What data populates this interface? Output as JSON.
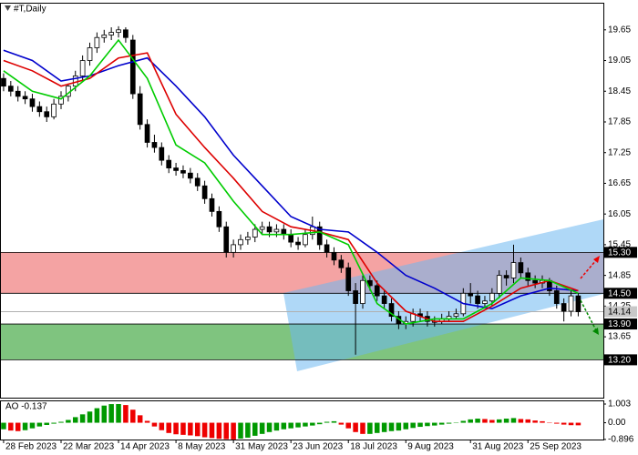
{
  "chart_data": [
    {
      "type": "candlestick",
      "title": "#T,Daily",
      "xlim": [
        -0.5,
        83.5
      ],
      "ylim": [
        12.46,
        20.18
      ],
      "xticks": [
        {
          "value": 0,
          "label": "28 Feb 2023"
        },
        {
          "value": 8,
          "label": "22 Mar 2023"
        },
        {
          "value": 16,
          "label": "14 Apr 2023"
        },
        {
          "value": 24,
          "label": "8 May 2023"
        },
        {
          "value": 32,
          "label": "31 May 2023"
        },
        {
          "value": 40,
          "label": "23 Jun 2023"
        },
        {
          "value": 48,
          "label": "18 Jul 2023"
        },
        {
          "value": 56,
          "label": "9 Aug 2023"
        },
        {
          "value": 65,
          "label": "31 Aug 2023"
        },
        {
          "value": 73,
          "label": "25 Sep 2023"
        }
      ],
      "yticks": [
        19.65,
        19.05,
        18.45,
        17.85,
        17.25,
        16.65,
        16.05,
        15.45,
        14.85,
        14.25,
        13.65
      ],
      "up_color": "#ffffff",
      "down_color": "#000000",
      "edge_color": "#000000",
      "open": [
        18.7,
        18.55,
        18.45,
        18.35,
        18.3,
        18.15,
        18.05,
        17.95,
        18.2,
        18.35,
        18.55,
        18.75,
        19.05,
        19.3,
        19.5,
        19.55,
        19.6,
        19.65,
        19.45,
        18.4,
        17.8,
        17.45,
        17.35,
        17.1,
        16.95,
        16.9,
        16.85,
        16.75,
        16.6,
        16.35,
        16.1,
        15.8,
        15.3,
        15.45,
        15.55,
        15.6,
        15.75,
        15.8,
        15.7,
        15.75,
        15.65,
        15.5,
        15.45,
        15.65,
        15.8,
        15.45,
        15.3,
        15.15,
        15.0,
        14.55,
        14.3,
        14.75,
        14.65,
        14.45,
        14.3,
        14.05,
        13.9,
        13.95,
        14.1,
        14.05,
        13.95,
        13.95,
        14.0,
        14.05,
        14.1,
        14.5,
        14.45,
        14.3,
        14.35,
        14.5,
        14.85,
        14.8,
        15.1,
        14.9,
        14.75,
        14.7,
        14.75,
        14.55,
        14.3,
        14.15,
        14.45
      ],
      "high": [
        18.8,
        18.65,
        18.55,
        18.45,
        18.4,
        18.25,
        18.15,
        18.3,
        18.45,
        18.6,
        18.85,
        19.15,
        19.4,
        19.6,
        19.65,
        19.7,
        19.72,
        19.7,
        19.55,
        18.55,
        17.9,
        17.6,
        17.45,
        17.2,
        17.05,
        17.0,
        16.95,
        16.85,
        16.7,
        16.45,
        16.2,
        15.9,
        15.55,
        15.65,
        15.7,
        15.85,
        15.9,
        15.9,
        15.85,
        15.85,
        15.75,
        15.6,
        15.75,
        16.0,
        15.9,
        15.55,
        15.4,
        15.25,
        15.1,
        14.7,
        14.85,
        14.85,
        14.75,
        14.55,
        14.4,
        14.15,
        14.05,
        14.2,
        14.2,
        14.15,
        14.05,
        14.1,
        14.15,
        14.2,
        14.6,
        14.7,
        14.55,
        14.45,
        14.6,
        14.95,
        14.95,
        15.45,
        15.2,
        15.0,
        14.85,
        14.85,
        14.8,
        14.65,
        14.4,
        14.55,
        14.5
      ],
      "low": [
        18.45,
        18.35,
        18.25,
        18.2,
        18.05,
        17.95,
        17.85,
        17.9,
        18.1,
        18.25,
        18.45,
        18.65,
        18.95,
        19.2,
        19.4,
        19.45,
        19.5,
        19.4,
        18.3,
        17.7,
        17.35,
        17.25,
        17.0,
        16.85,
        16.8,
        16.75,
        16.65,
        16.5,
        16.25,
        16.0,
        15.7,
        15.2,
        15.2,
        15.35,
        15.45,
        15.5,
        15.65,
        15.6,
        15.6,
        15.55,
        15.4,
        15.35,
        15.4,
        15.55,
        15.35,
        15.2,
        15.05,
        14.9,
        14.45,
        13.3,
        14.2,
        14.55,
        14.35,
        14.2,
        13.95,
        13.8,
        13.8,
        13.85,
        13.95,
        13.85,
        13.85,
        13.9,
        13.95,
        14.0,
        14.05,
        14.3,
        14.2,
        14.2,
        14.25,
        14.4,
        14.65,
        14.7,
        14.8,
        14.65,
        14.6,
        14.6,
        14.45,
        14.2,
        13.95,
        14.05,
        14.05
      ],
      "close": [
        18.55,
        18.45,
        18.35,
        18.3,
        18.15,
        18.05,
        17.95,
        18.2,
        18.35,
        18.55,
        18.75,
        19.05,
        19.3,
        19.5,
        19.55,
        19.6,
        19.65,
        19.5,
        18.4,
        17.8,
        17.45,
        17.35,
        17.1,
        16.95,
        16.9,
        16.85,
        16.75,
        16.6,
        16.35,
        16.1,
        15.8,
        15.3,
        15.45,
        15.55,
        15.6,
        15.75,
        15.8,
        15.7,
        15.75,
        15.65,
        15.5,
        15.45,
        15.65,
        15.8,
        15.45,
        15.3,
        15.15,
        15.0,
        14.55,
        14.3,
        14.75,
        14.65,
        14.45,
        14.3,
        14.05,
        13.9,
        13.95,
        14.1,
        14.05,
        13.95,
        13.95,
        14.0,
        14.05,
        14.1,
        14.5,
        14.45,
        14.3,
        14.35,
        14.5,
        14.85,
        14.8,
        15.1,
        14.9,
        14.75,
        14.7,
        14.75,
        14.55,
        14.3,
        14.15,
        14.45,
        14.14
      ],
      "lines": [
        {
          "color": "#0000cc",
          "x": [
            0,
            4,
            8,
            12,
            16,
            20,
            24,
            28,
            32,
            36,
            40,
            44,
            48,
            52,
            56,
            60,
            64,
            68,
            72,
            76,
            80
          ],
          "values": [
            19.25,
            19.05,
            18.65,
            18.75,
            18.95,
            19.1,
            18.55,
            17.95,
            17.2,
            16.6,
            16.0,
            15.75,
            15.7,
            15.3,
            14.85,
            14.6,
            14.3,
            14.2,
            14.45,
            14.6,
            14.55
          ]
        },
        {
          "color": "#dd0000",
          "x": [
            0,
            4,
            8,
            12,
            16,
            20,
            24,
            28,
            32,
            36,
            40,
            44,
            48,
            52,
            56,
            60,
            64,
            68,
            72,
            76,
            80
          ],
          "values": [
            19.05,
            18.85,
            18.55,
            18.7,
            19.1,
            19.2,
            18.0,
            17.35,
            16.75,
            16.1,
            15.8,
            15.7,
            15.55,
            14.7,
            14.15,
            13.95,
            13.95,
            14.25,
            14.6,
            14.75,
            14.55
          ]
        },
        {
          "color": "#00cc00",
          "x": [
            0,
            4,
            8,
            12,
            16,
            20,
            24,
            28,
            32,
            36,
            40,
            44,
            48,
            52,
            56,
            60,
            64,
            68,
            72,
            76,
            80
          ],
          "values": [
            18.85,
            18.45,
            18.3,
            18.75,
            19.45,
            18.7,
            17.4,
            17.05,
            16.3,
            15.65,
            15.65,
            15.7,
            15.45,
            14.3,
            13.9,
            14.0,
            14.0,
            14.3,
            14.8,
            14.75,
            14.5
          ]
        }
      ],
      "zones": [
        {
          "high": {
            "value": 15.3,
            "label": "15.30"
          },
          "low": {
            "value": 14.5,
            "label": "14.50"
          },
          "color": "#f4a3a3"
        },
        {
          "high": {
            "value": 13.9,
            "label": "13.90"
          },
          "low": {
            "value": 13.2,
            "label": "13.20"
          },
          "color": "#7fc47f"
        }
      ],
      "current_price": {
        "value": 14.14,
        "label": "14.14"
      }
    },
    {
      "type": "bar",
      "title": "AO -0.137",
      "ylim": [
        -0.95,
        1.15
      ],
      "yticks": [
        1.003,
        {
          "value": 0,
          "label": "0.00"
        },
        -0.896
      ],
      "up_color": "#009900",
      "down_color": "#ee0000",
      "values": [
        -0.35,
        -0.42,
        -0.45,
        -0.4,
        -0.3,
        -0.2,
        -0.12,
        -0.05,
        0.05,
        0.15,
        0.3,
        0.45,
        0.6,
        0.78,
        0.92,
        1.0,
        1.003,
        0.95,
        0.7,
        0.4,
        0.1,
        -0.2,
        -0.4,
        -0.55,
        -0.62,
        -0.65,
        -0.68,
        -0.72,
        -0.78,
        -0.82,
        -0.86,
        -0.88,
        -0.896,
        -0.85,
        -0.8,
        -0.7,
        -0.6,
        -0.5,
        -0.42,
        -0.35,
        -0.3,
        -0.25,
        -0.2,
        -0.15,
        -0.08,
        0.05,
        0.08,
        -0.1,
        -0.3,
        -0.5,
        -0.6,
        -0.6,
        -0.55,
        -0.5,
        -0.45,
        -0.42,
        -0.35,
        -0.28,
        -0.22,
        -0.18,
        -0.15,
        -0.1,
        -0.05,
        0.02,
        0.1,
        0.18,
        0.22,
        0.2,
        0.15,
        0.18,
        0.22,
        0.25,
        0.2,
        0.18,
        0.12,
        0.08,
        0.02,
        -0.05,
        -0.1,
        -0.13,
        -0.137
      ]
    }
  ]
}
